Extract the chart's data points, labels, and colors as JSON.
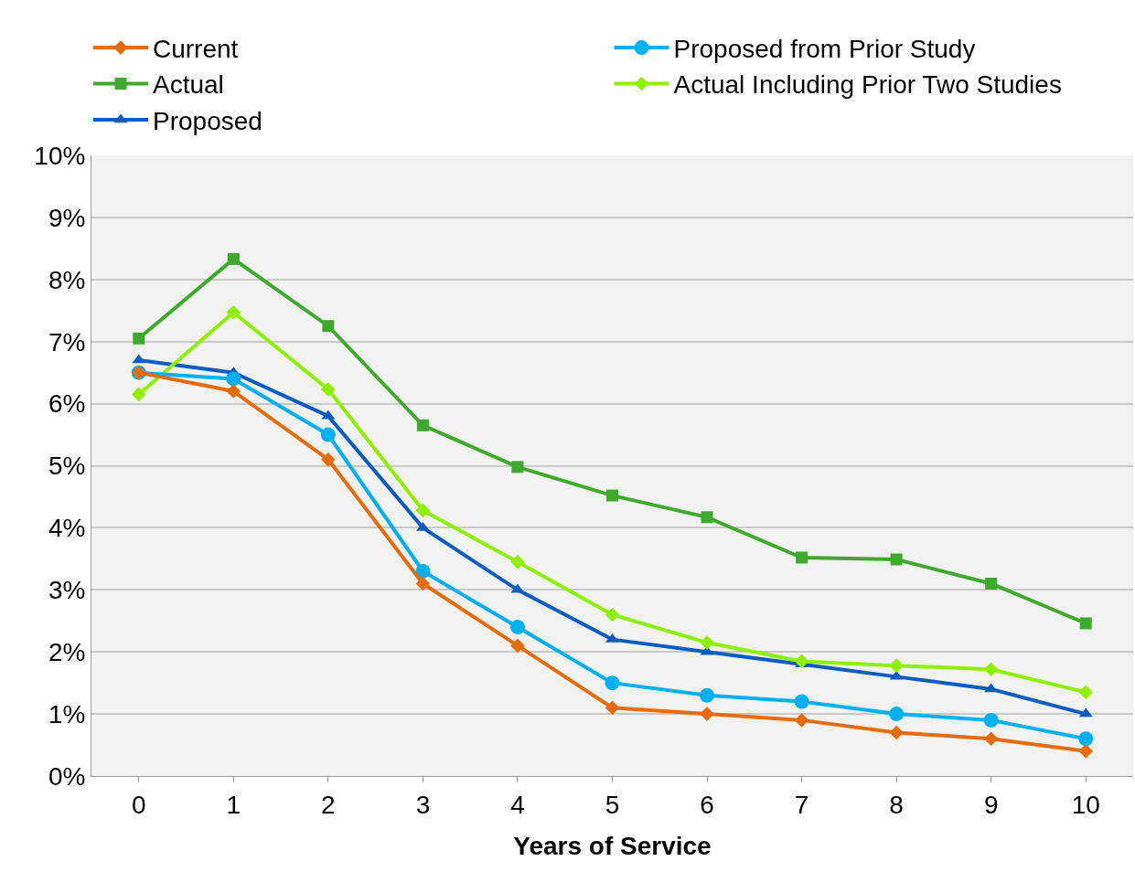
{
  "chart_data": {
    "type": "line",
    "xlabel": "Years of Service",
    "x": [
      0,
      1,
      2,
      3,
      4,
      5,
      6,
      7,
      8,
      9,
      10
    ],
    "xlim": [
      -0.5,
      10.5
    ],
    "xticks": [
      0,
      1,
      2,
      3,
      4,
      5,
      6,
      7,
      8,
      9,
      10
    ],
    "ylim": [
      0,
      10
    ],
    "yticks": [
      {
        "value": 0,
        "label": "0%"
      },
      {
        "value": 1,
        "label": "1%"
      },
      {
        "value": 2,
        "label": "2%"
      },
      {
        "value": 3,
        "label": "3%"
      },
      {
        "value": 4,
        "label": "4%"
      },
      {
        "value": 5,
        "label": "5%"
      },
      {
        "value": 6,
        "label": "6%"
      },
      {
        "value": 7,
        "label": "7%"
      },
      {
        "value": 8,
        "label": "8%"
      },
      {
        "value": 9,
        "label": "9%"
      },
      {
        "value": 10,
        "label": "10%"
      }
    ],
    "grid": "y",
    "legend": "top",
    "line_style": "solid",
    "series": [
      {
        "name": "Current",
        "color": "#e46c0a",
        "marker": "diamond",
        "values": [
          6.5,
          6.2,
          5.1,
          3.1,
          2.1,
          1.1,
          1.0,
          0.9,
          0.7,
          0.6,
          0.4
        ]
      },
      {
        "name": "Proposed from Prior Study",
        "color": "#00b0f0",
        "marker": "circle",
        "values": [
          6.5,
          6.4,
          5.5,
          3.3,
          2.4,
          1.5,
          1.3,
          1.2,
          1.0,
          0.9,
          0.6
        ]
      },
      {
        "name": "Actual",
        "color": "#3fa92d",
        "marker": "square",
        "values": [
          7.05,
          8.33,
          7.25,
          5.65,
          4.98,
          4.52,
          4.17,
          3.52,
          3.49,
          3.1,
          2.46
        ]
      },
      {
        "name": "Actual Including Prior Two Studies",
        "color": "#8ef000",
        "marker": "diamond",
        "values": [
          6.15,
          7.47,
          6.23,
          4.28,
          3.45,
          2.6,
          2.15,
          1.85,
          1.78,
          1.72,
          1.35
        ]
      },
      {
        "name": "Proposed",
        "color": "#0a5cbf",
        "marker": "triangle",
        "values": [
          6.7,
          6.5,
          5.8,
          4.0,
          3.0,
          2.2,
          2.0,
          1.8,
          1.6,
          1.4,
          1.0
        ]
      }
    ]
  }
}
